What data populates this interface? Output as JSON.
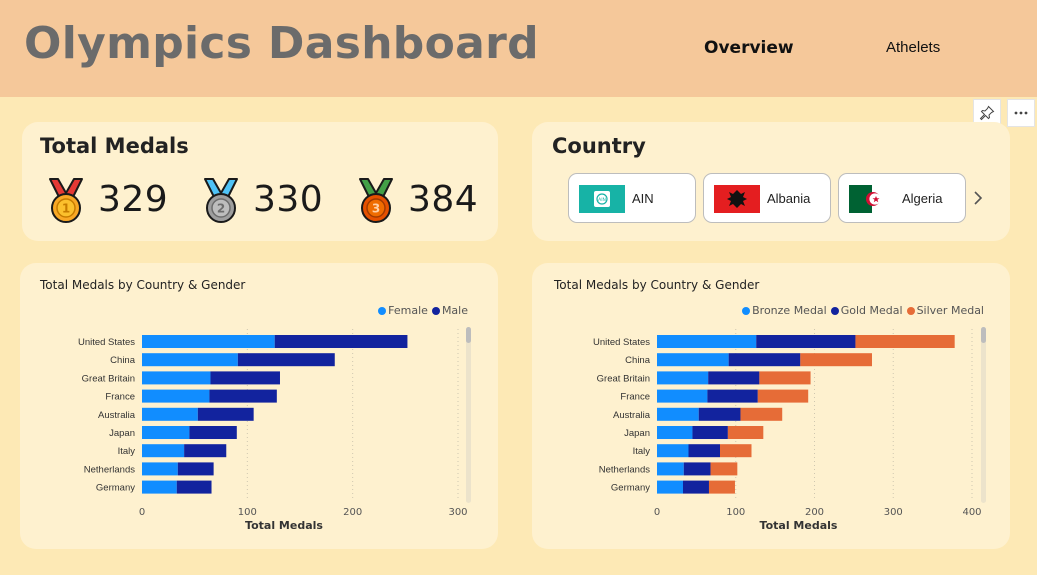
{
  "header": {
    "title": "Olympics Dashboard",
    "tabs": [
      {
        "label": "Overview",
        "active": true
      },
      {
        "label": "Athelets",
        "active": false
      }
    ]
  },
  "toolbar": {
    "pin_icon": "pin-icon",
    "more_icon": "more-options-icon"
  },
  "medals_card": {
    "title": "Total Medals",
    "items": [
      {
        "type": "gold",
        "value": "329",
        "icon": "gold-medal-icon"
      },
      {
        "type": "silver",
        "value": "330",
        "icon": "silver-medal-icon"
      },
      {
        "type": "bronze",
        "value": "384",
        "icon": "bronze-medal-icon"
      }
    ]
  },
  "country_card": {
    "title": "Country",
    "chips": [
      {
        "label": "AIN",
        "flag": "ain-flag-icon"
      },
      {
        "label": "Albania",
        "flag": "albania-flag-icon"
      },
      {
        "label": "Algeria",
        "flag": "algeria-flag-icon"
      }
    ],
    "next_icon": "chevron-right-icon"
  },
  "colors": {
    "female": "#118dff",
    "male": "#12239e",
    "bronze_medal": "#118dff",
    "gold_medal": "#12239e",
    "silver_medal": "#e66c37"
  },
  "chart_data": [
    {
      "type": "bar",
      "orientation": "horizontal",
      "stacked": true,
      "title": "Total Medals by Country & Gender",
      "xlabel": "Total Medals",
      "ylabel": "",
      "xlim": [
        0,
        300
      ],
      "xticks": [
        "0",
        "100",
        "200",
        "300"
      ],
      "legend_position": "top-right",
      "categories": [
        "United States",
        "China",
        "Great Britain",
        "France",
        "Australia",
        "Japan",
        "Italy",
        "Netherlands",
        "Germany"
      ],
      "series": [
        {
          "name": "Female",
          "color": "#118dff",
          "values": [
            126,
            91,
            65,
            64,
            53,
            45,
            40,
            34,
            33
          ]
        },
        {
          "name": "Male",
          "color": "#12239e",
          "values": [
            126,
            92,
            66,
            64,
            53,
            45,
            40,
            34,
            33
          ]
        }
      ]
    },
    {
      "type": "bar",
      "orientation": "horizontal",
      "stacked": true,
      "title": "Total Medals by Country & Gender",
      "xlabel": "Total Medals",
      "ylabel": "",
      "xlim": [
        0,
        400
      ],
      "xticks": [
        "0",
        "100",
        "200",
        "300",
        "400"
      ],
      "legend_position": "top-right",
      "categories": [
        "United States",
        "China",
        "Great Britain",
        "France",
        "Australia",
        "Japan",
        "Italy",
        "Netherlands",
        "Germany"
      ],
      "series": [
        {
          "name": "Bronze Medal",
          "color": "#118dff",
          "values": [
            126,
            91,
            65,
            64,
            53,
            45,
            40,
            34,
            33
          ]
        },
        {
          "name": "Gold Medal",
          "color": "#12239e",
          "values": [
            126,
            91,
            65,
            64,
            53,
            45,
            40,
            34,
            33
          ]
        },
        {
          "name": "Silver Medal",
          "color": "#e66c37",
          "values": [
            126,
            91,
            65,
            64,
            53,
            45,
            40,
            34,
            33
          ]
        }
      ]
    }
  ]
}
